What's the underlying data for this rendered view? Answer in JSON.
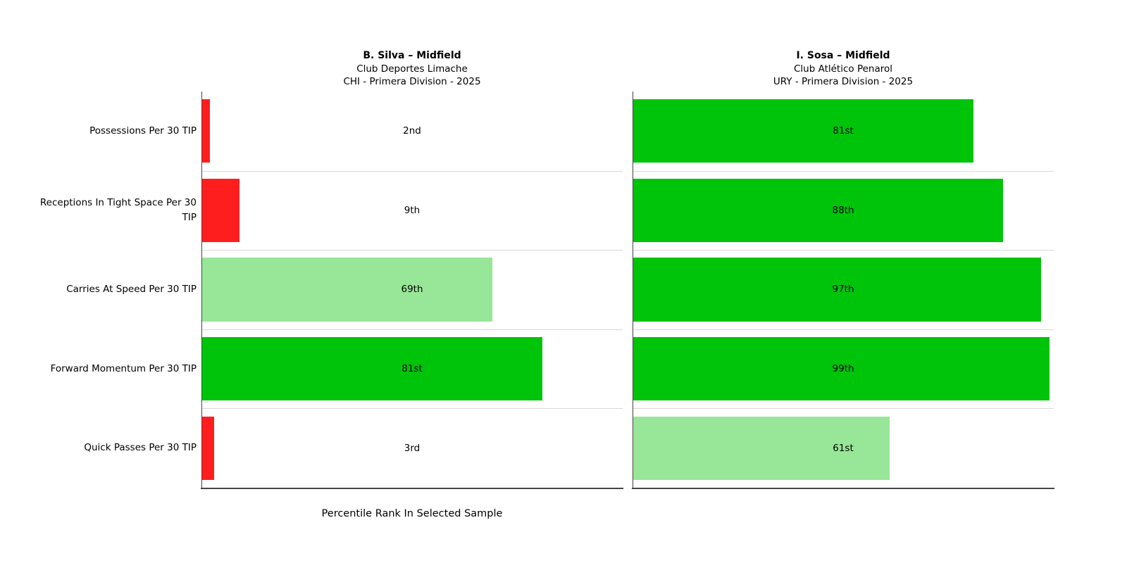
{
  "chart_data": {
    "type": "bar",
    "orientation": "horizontal",
    "xlabel": "Percentile Rank In Selected Sample",
    "xlim": [
      0,
      100
    ],
    "grid": "row-separator-lines",
    "legend_position": "none",
    "categories": [
      "Possessions Per 30 TIP",
      "Receptions In Tight Space Per 30 TIP",
      "Carries At Speed Per 30 TIP",
      "Forward Momentum Per 30 TIP",
      "Quick Passes Per 30 TIP"
    ],
    "panels": [
      {
        "title": "B. Silva – Midfield",
        "club": "Club Deportes Limache",
        "league": "CHI - Primera Division - 2025",
        "bars": [
          {
            "category": "Possessions Per 30 TIP",
            "value": 2,
            "label": "2nd",
            "color_key": "red"
          },
          {
            "category": "Receptions In Tight Space Per 30 TIP",
            "value": 9,
            "label": "9th",
            "color_key": "red"
          },
          {
            "category": "Carries At Speed Per 30 TIP",
            "value": 69,
            "label": "69th",
            "color_key": "light_green"
          },
          {
            "category": "Forward Momentum Per 30 TIP",
            "value": 81,
            "label": "81st",
            "color_key": "green"
          },
          {
            "category": "Quick Passes Per 30 TIP",
            "value": 3,
            "label": "3rd",
            "color_key": "red"
          }
        ]
      },
      {
        "title": "I. Sosa – Midfield",
        "club": "Club Atlético Penarol",
        "league": "URY - Primera Division - 2025",
        "bars": [
          {
            "category": "Possessions Per 30 TIP",
            "value": 81,
            "label": "81st",
            "color_key": "green"
          },
          {
            "category": "Receptions In Tight Space Per 30 TIP",
            "value": 88,
            "label": "88th",
            "color_key": "green"
          },
          {
            "category": "Carries At Speed Per 30 TIP",
            "value": 97,
            "label": "97th",
            "color_key": "green"
          },
          {
            "category": "Forward Momentum Per 30 TIP",
            "value": 99,
            "label": "99th",
            "color_key": "green"
          },
          {
            "category": "Quick Passes Per 30 TIP",
            "value": 61,
            "label": "61st",
            "color_key": "light_green"
          }
        ]
      }
    ],
    "colors": {
      "red": "#ff1e1e",
      "green": "#00c40a",
      "light_green": "#98e698",
      "gridline": "#d9d9d9",
      "spine": "#454545",
      "text": "#000000"
    }
  }
}
